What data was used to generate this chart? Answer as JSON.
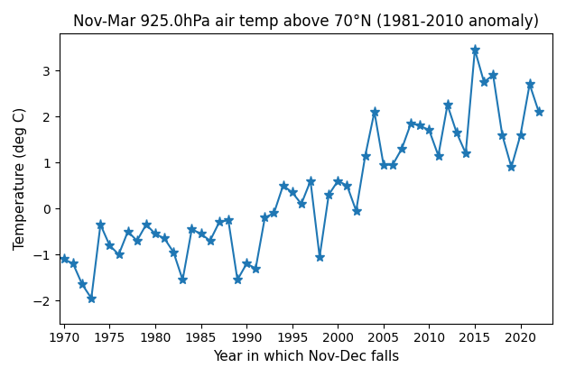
{
  "years": [
    1970,
    1971,
    1972,
    1973,
    1974,
    1975,
    1976,
    1977,
    1978,
    1979,
    1980,
    1981,
    1982,
    1983,
    1984,
    1985,
    1986,
    1987,
    1988,
    1989,
    1990,
    1991,
    1992,
    1993,
    1994,
    1995,
    1996,
    1997,
    1998,
    1999,
    2000,
    2001,
    2002,
    2003,
    2004,
    2005,
    2006,
    2007,
    2008,
    2009,
    2010,
    2011,
    2012,
    2013,
    2014,
    2015,
    2016,
    2017,
    2018,
    2019,
    2020,
    2021,
    2022
  ],
  "values": [
    -1.1,
    -1.2,
    -1.65,
    -1.95,
    -0.35,
    -0.8,
    -1.0,
    -0.5,
    -0.7,
    -0.35,
    -0.55,
    -0.65,
    -0.95,
    -1.55,
    -0.45,
    -0.55,
    -0.7,
    -0.3,
    -0.25,
    -1.55,
    -1.2,
    -1.3,
    -0.2,
    -0.1,
    0.5,
    0.35,
    0.1,
    0.6,
    -1.05,
    0.3,
    0.6,
    0.5,
    -0.05,
    1.15,
    2.1,
    0.95,
    0.95,
    1.3,
    1.85,
    1.8,
    1.7,
    1.15,
    2.25,
    1.65,
    1.2,
    3.45,
    2.75,
    2.9,
    1.6,
    0.9,
    1.6,
    2.7,
    2.1
  ],
  "title": "Nov-Mar 925.0hPa air temp above 70°N (1981-2010 anomaly)",
  "xlabel": "Year in which Nov-Dec falls",
  "ylabel": "Temperature (deg C)",
  "color": "#1f77b4",
  "marker": "*",
  "markersize": 8,
  "linewidth": 1.5,
  "ylim": [
    -2.5,
    3.8
  ],
  "xlim": [
    1969.5,
    2023.5
  ],
  "yticks": [
    -2,
    -1,
    0,
    1,
    2,
    3
  ],
  "xticks": [
    1970,
    1975,
    1980,
    1985,
    1990,
    1995,
    2000,
    2005,
    2010,
    2015,
    2020
  ]
}
